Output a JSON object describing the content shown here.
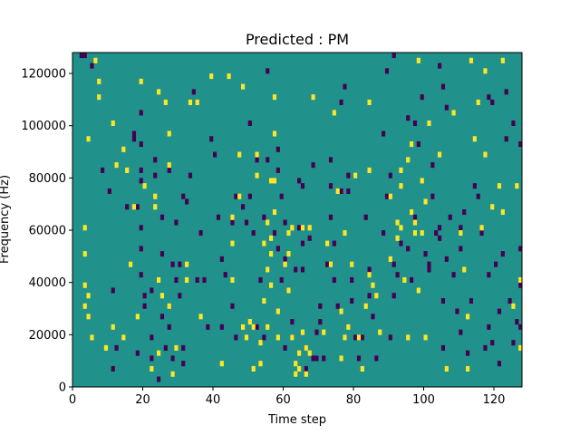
{
  "chart_data": {
    "type": "heatmap",
    "title": "Predicted : PM",
    "xlabel": "Time step",
    "ylabel": "Frequency (Hz)",
    "xlim": [
      0,
      128
    ],
    "ylim": [
      0,
      128000
    ],
    "x_ticks": [
      0,
      20,
      40,
      60,
      80,
      100,
      120
    ],
    "x_tick_labels": [
      "0",
      "20",
      "40",
      "60",
      "80",
      "100",
      "120"
    ],
    "y_ticks": [
      0,
      20000,
      40000,
      60000,
      80000,
      100000,
      120000
    ],
    "y_tick_labels": [
      "0",
      "20000",
      "40000",
      "60000",
      "80000",
      "100000",
      "120000"
    ],
    "grid": false,
    "bin_height_hz": 2000,
    "colormap": "viridis",
    "colors": {
      "background": "#21918c",
      "low": "#440154",
      "high": "#fde725"
    },
    "cells": {
      "high": [
        [
          3,
          60000
        ],
        [
          3,
          50000
        ],
        [
          3,
          38000
        ],
        [
          3,
          30000
        ],
        [
          4,
          94000
        ],
        [
          4,
          34000
        ],
        [
          4,
          26000
        ],
        [
          5,
          18000
        ],
        [
          6,
          124000
        ],
        [
          7,
          116000
        ],
        [
          7,
          110000
        ],
        [
          9,
          14000
        ],
        [
          11,
          100000
        ],
        [
          11,
          22000
        ],
        [
          12,
          84000
        ],
        [
          14,
          90000
        ],
        [
          14,
          18000
        ],
        [
          15,
          82000
        ],
        [
          16,
          46000
        ],
        [
          17,
          68000
        ],
        [
          18,
          26000
        ],
        [
          19,
          116000
        ],
        [
          20,
          76000
        ],
        [
          22,
          6000
        ],
        [
          23,
          72000
        ],
        [
          23,
          68000
        ],
        [
          24,
          112000
        ],
        [
          24,
          40000
        ],
        [
          24,
          12000
        ],
        [
          25,
          34000
        ],
        [
          26,
          108000
        ],
        [
          27,
          96000
        ],
        [
          27,
          84000
        ],
        [
          27,
          30000
        ],
        [
          28,
          4000
        ],
        [
          29,
          14000
        ],
        [
          32,
          46000
        ],
        [
          32,
          40000
        ],
        [
          33,
          108000
        ],
        [
          35,
          108000
        ],
        [
          36,
          26000
        ],
        [
          39,
          118000
        ],
        [
          42,
          8000
        ],
        [
          45,
          64000
        ],
        [
          45,
          54000
        ],
        [
          45,
          40000
        ],
        [
          44,
          118000
        ],
        [
          47,
          88000
        ],
        [
          47,
          72000
        ],
        [
          48,
          114000
        ],
        [
          48,
          22000
        ],
        [
          49,
          18000
        ],
        [
          50,
          24000
        ],
        [
          51,
          22000
        ],
        [
          51,
          6000
        ],
        [
          52,
          88000
        ],
        [
          52,
          80000
        ],
        [
          53,
          16000
        ],
        [
          53,
          8000
        ],
        [
          54,
          54000
        ],
        [
          54,
          32000
        ],
        [
          55,
          62000
        ],
        [
          55,
          44000
        ],
        [
          55,
          22000
        ],
        [
          56,
          78000
        ],
        [
          56,
          56000
        ],
        [
          56,
          50000
        ],
        [
          56,
          38000
        ],
        [
          57,
          110000
        ],
        [
          57,
          96000
        ],
        [
          57,
          78000
        ],
        [
          57,
          66000
        ],
        [
          58,
          28000
        ],
        [
          58,
          18000
        ],
        [
          60,
          46000
        ],
        [
          61,
          58000
        ],
        [
          61,
          50000
        ],
        [
          61,
          36000
        ],
        [
          62,
          60000
        ],
        [
          62,
          18000
        ],
        [
          63,
          8000
        ],
        [
          63,
          4000
        ],
        [
          64,
          12000
        ],
        [
          64,
          6000
        ],
        [
          65,
          60000
        ],
        [
          65,
          20000
        ],
        [
          66,
          14000
        ],
        [
          66,
          4000
        ],
        [
          67,
          60000
        ],
        [
          67,
          12000
        ],
        [
          68,
          110000
        ],
        [
          71,
          20000
        ],
        [
          72,
          54000
        ],
        [
          73,
          46000
        ],
        [
          74,
          104000
        ],
        [
          75,
          74000
        ],
        [
          76,
          28000
        ],
        [
          76,
          10000
        ],
        [
          77,
          58000
        ],
        [
          77,
          18000
        ],
        [
          78,
          22000
        ],
        [
          79,
          46000
        ],
        [
          80,
          80000
        ],
        [
          81,
          18000
        ],
        [
          82,
          6000
        ],
        [
          83,
          30000
        ],
        [
          84,
          108000
        ],
        [
          84,
          82000
        ],
        [
          84,
          42000
        ],
        [
          85,
          38000
        ],
        [
          86,
          34000
        ],
        [
          87,
          20000
        ],
        [
          90,
          72000
        ],
        [
          90,
          48000
        ],
        [
          92,
          62000
        ],
        [
          92,
          56000
        ],
        [
          93,
          82000
        ],
        [
          93,
          76000
        ],
        [
          93,
          60000
        ],
        [
          94,
          40000
        ],
        [
          95,
          86000
        ],
        [
          95,
          18000
        ],
        [
          96,
          92000
        ],
        [
          96,
          66000
        ],
        [
          97,
          62000
        ],
        [
          97,
          58000
        ],
        [
          98,
          124000
        ],
        [
          98,
          36000
        ],
        [
          99,
          78000
        ],
        [
          99,
          58000
        ],
        [
          100,
          18000
        ],
        [
          101,
          100000
        ],
        [
          104,
          88000
        ],
        [
          106,
          6000
        ],
        [
          108,
          104000
        ],
        [
          110,
          58000
        ],
        [
          111,
          44000
        ],
        [
          112,
          26000
        ],
        [
          112,
          6000
        ],
        [
          113,
          124000
        ],
        [
          114,
          94000
        ],
        [
          115,
          108000
        ],
        [
          116,
          60000
        ],
        [
          117,
          120000
        ],
        [
          117,
          88000
        ],
        [
          119,
          68000
        ],
        [
          121,
          76000
        ],
        [
          122,
          124000
        ],
        [
          122,
          66000
        ],
        [
          125,
          30000
        ],
        [
          126,
          76000
        ],
        [
          127,
          40000
        ],
        [
          127,
          14000
        ],
        [
          100,
          70000
        ]
      ],
      "low": [
        [
          2,
          126000
        ],
        [
          3,
          126000
        ],
        [
          5,
          122000
        ],
        [
          8,
          82000
        ],
        [
          10,
          74000
        ],
        [
          11,
          6000
        ],
        [
          11,
          36000
        ],
        [
          12,
          14000
        ],
        [
          15,
          68000
        ],
        [
          17,
          96000
        ],
        [
          17,
          94000
        ],
        [
          18,
          68000
        ],
        [
          18,
          12000
        ],
        [
          19,
          104000
        ],
        [
          19,
          92000
        ],
        [
          19,
          82000
        ],
        [
          19,
          78000
        ],
        [
          19,
          60000
        ],
        [
          19,
          52000
        ],
        [
          19,
          42000
        ],
        [
          20,
          34000
        ],
        [
          20,
          30000
        ],
        [
          22,
          36000
        ],
        [
          22,
          18000
        ],
        [
          22,
          10000
        ],
        [
          23,
          86000
        ],
        [
          23,
          80000
        ],
        [
          24,
          2000
        ],
        [
          25,
          64000
        ],
        [
          25,
          50000
        ],
        [
          25,
          26000
        ],
        [
          26,
          14000
        ],
        [
          27,
          82000
        ],
        [
          27,
          22000
        ],
        [
          28,
          46000
        ],
        [
          28,
          10000
        ],
        [
          29,
          62000
        ],
        [
          29,
          40000
        ],
        [
          30,
          46000
        ],
        [
          30,
          34000
        ],
        [
          31,
          72000
        ],
        [
          31,
          8000
        ],
        [
          31,
          14000
        ],
        [
          32,
          70000
        ],
        [
          33,
          80000
        ],
        [
          34,
          112000
        ],
        [
          35,
          40000
        ],
        [
          36,
          58000
        ],
        [
          37,
          40000
        ],
        [
          38,
          22000
        ],
        [
          39,
          94000
        ],
        [
          40,
          88000
        ],
        [
          41,
          64000
        ],
        [
          42,
          22000
        ],
        [
          42,
          48000
        ],
        [
          43,
          42000
        ],
        [
          45,
          62000
        ],
        [
          45,
          30000
        ],
        [
          46,
          72000
        ],
        [
          46,
          18000
        ],
        [
          48,
          68000
        ],
        [
          49,
          62000
        ],
        [
          50,
          72000
        ],
        [
          50,
          100000
        ],
        [
          51,
          58000
        ],
        [
          52,
          86000
        ],
        [
          52,
          22000
        ],
        [
          53,
          40000
        ],
        [
          54,
          64000
        ],
        [
          54,
          18000
        ],
        [
          55,
          120000
        ],
        [
          55,
          86000
        ],
        [
          56,
          78000
        ],
        [
          57,
          58000
        ],
        [
          58,
          90000
        ],
        [
          58,
          82000
        ],
        [
          58,
          52000
        ],
        [
          59,
          72000
        ],
        [
          59,
          40000
        ],
        [
          60,
          48000
        ],
        [
          60,
          62000
        ],
        [
          60,
          14000
        ],
        [
          62,
          18000
        ],
        [
          62,
          24000
        ],
        [
          63,
          44000
        ],
        [
          64,
          60000
        ],
        [
          64,
          78000
        ],
        [
          65,
          76000
        ],
        [
          65,
          54000
        ],
        [
          65,
          44000
        ],
        [
          66,
          14000
        ],
        [
          66,
          6000
        ],
        [
          67,
          56000
        ],
        [
          68,
          10000
        ],
        [
          68,
          84000
        ],
        [
          69,
          10000
        ],
        [
          69,
          20000
        ],
        [
          70,
          24000
        ],
        [
          70,
          30000
        ],
        [
          71,
          10000
        ],
        [
          72,
          46000
        ],
        [
          73,
          86000
        ],
        [
          73,
          76000
        ],
        [
          73,
          64000
        ],
        [
          74,
          54000
        ],
        [
          74,
          40000
        ],
        [
          75,
          30000
        ],
        [
          76,
          74000
        ],
        [
          76,
          108000
        ],
        [
          77,
          114000
        ],
        [
          78,
          80000
        ],
        [
          78,
          74000
        ],
        [
          79,
          32000
        ],
        [
          79,
          40000
        ],
        [
          80,
          18000
        ],
        [
          81,
          10000
        ],
        [
          82,
          18000
        ],
        [
          83,
          64000
        ],
        [
          84,
          44000
        ],
        [
          84,
          34000
        ],
        [
          85,
          26000
        ],
        [
          86,
          10000
        ],
        [
          88,
          58000
        ],
        [
          89,
          72000
        ],
        [
          90,
          80000
        ],
        [
          90,
          18000
        ],
        [
          91,
          46000
        ],
        [
          91,
          34000
        ],
        [
          92,
          42000
        ],
        [
          93,
          54000
        ],
        [
          95,
          52000
        ],
        [
          96,
          40000
        ],
        [
          97,
          64000
        ],
        [
          98,
          92000
        ],
        [
          99,
          110000
        ],
        [
          100,
          50000
        ],
        [
          101,
          46000
        ],
        [
          101,
          44000
        ],
        [
          102,
          84000
        ],
        [
          102,
          72000
        ],
        [
          103,
          58000
        ],
        [
          104,
          60000
        ],
        [
          104,
          56000
        ],
        [
          105,
          32000
        ],
        [
          105,
          14000
        ],
        [
          106,
          48000
        ],
        [
          107,
          64000
        ],
        [
          108,
          42000
        ],
        [
          109,
          28000
        ],
        [
          110,
          20000
        ],
        [
          110,
          52000
        ],
        [
          111,
          66000
        ],
        [
          112,
          12000
        ],
        [
          113,
          32000
        ],
        [
          115,
          72000
        ],
        [
          116,
          58000
        ],
        [
          117,
          14000
        ],
        [
          118,
          42000
        ],
        [
          118,
          22000
        ],
        [
          119,
          16000
        ],
        [
          120,
          46000
        ],
        [
          121,
          28000
        ],
        [
          121,
          8000
        ],
        [
          122,
          50000
        ],
        [
          123,
          94000
        ],
        [
          124,
          32000
        ],
        [
          125,
          16000
        ],
        [
          126,
          24000
        ],
        [
          127,
          38000
        ],
        [
          127,
          92000
        ],
        [
          127,
          22000
        ],
        [
          88,
          96000
        ],
        [
          89,
          120000
        ],
        [
          91,
          126000
        ],
        [
          95,
          102000
        ],
        [
          97,
          100000
        ],
        [
          104,
          122000
        ],
        [
          105,
          114000
        ],
        [
          106,
          106000
        ],
        [
          110,
          60000
        ],
        [
          114,
          76000
        ],
        [
          118,
          110000
        ],
        [
          119,
          108000
        ],
        [
          123,
          112000
        ],
        [
          125,
          100000
        ],
        [
          127,
          52000
        ]
      ]
    }
  }
}
